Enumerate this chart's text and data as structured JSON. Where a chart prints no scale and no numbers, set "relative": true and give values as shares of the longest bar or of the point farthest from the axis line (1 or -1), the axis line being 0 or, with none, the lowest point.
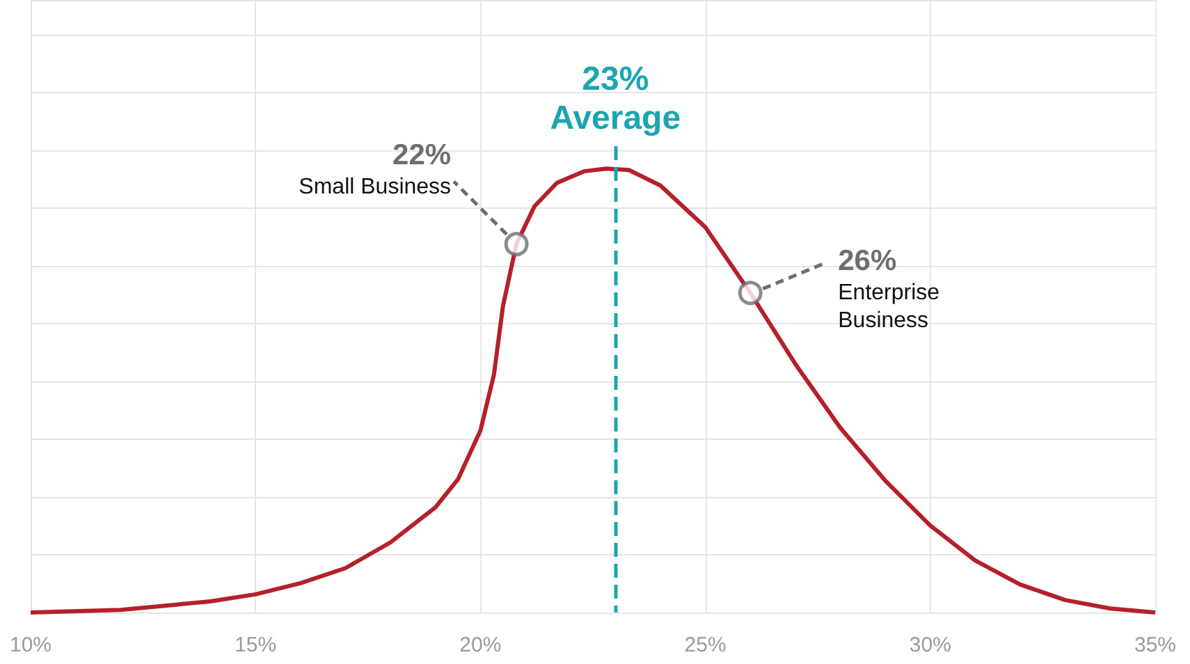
{
  "chart_data": {
    "type": "line",
    "relative": true,
    "x": [
      10,
      12,
      14,
      15,
      16,
      17,
      18,
      19,
      19.5,
      20,
      20.3,
      20.5,
      20.8,
      21.2,
      21.7,
      22.3,
      22.8,
      23.3,
      24,
      25,
      26,
      27,
      28,
      29,
      30,
      31,
      32,
      33,
      34,
      35
    ],
    "series": [
      {
        "type": "line",
        "color": "#b5202a",
        "marker": "none",
        "values": [
          0,
          0.006,
          0.025,
          0.041,
          0.066,
          0.1,
          0.158,
          0.237,
          0.3,
          0.41,
          0.536,
          0.69,
          0.83,
          0.915,
          0.968,
          0.994,
          1.0,
          0.997,
          0.962,
          0.868,
          0.72,
          0.56,
          0.416,
          0.297,
          0.196,
          0.117,
          0.063,
          0.028,
          0.009,
          0
        ]
      },
      {
        "type": "scatter",
        "color": "#6d6e71",
        "marker": "circle",
        "x": [
          20.8,
          26
        ],
        "values": [
          0.83,
          0.72
        ]
      }
    ],
    "xlim": [
      10,
      35
    ],
    "xticks": [
      {
        "value": 10,
        "label": "10%"
      },
      {
        "value": 15,
        "label": "15%"
      },
      {
        "value": 20,
        "label": "20%"
      },
      {
        "value": 25,
        "label": "25%"
      },
      {
        "value": 30,
        "label": "30%"
      },
      {
        "value": 35,
        "label": "35%"
      }
    ],
    "grid": true,
    "ref_lines": [
      {
        "axis": "x",
        "value": 23,
        "label": "23%\nAverage",
        "color": "#1ba5b2",
        "line_style": "dashed"
      }
    ],
    "annotations": [
      {
        "text": "22%\nSmall Business",
        "x": 20.8,
        "y": 0.83
      },
      {
        "text": "26%\nEnterprise\nBusiness",
        "x": 26,
        "y": 0.72
      }
    ]
  }
}
